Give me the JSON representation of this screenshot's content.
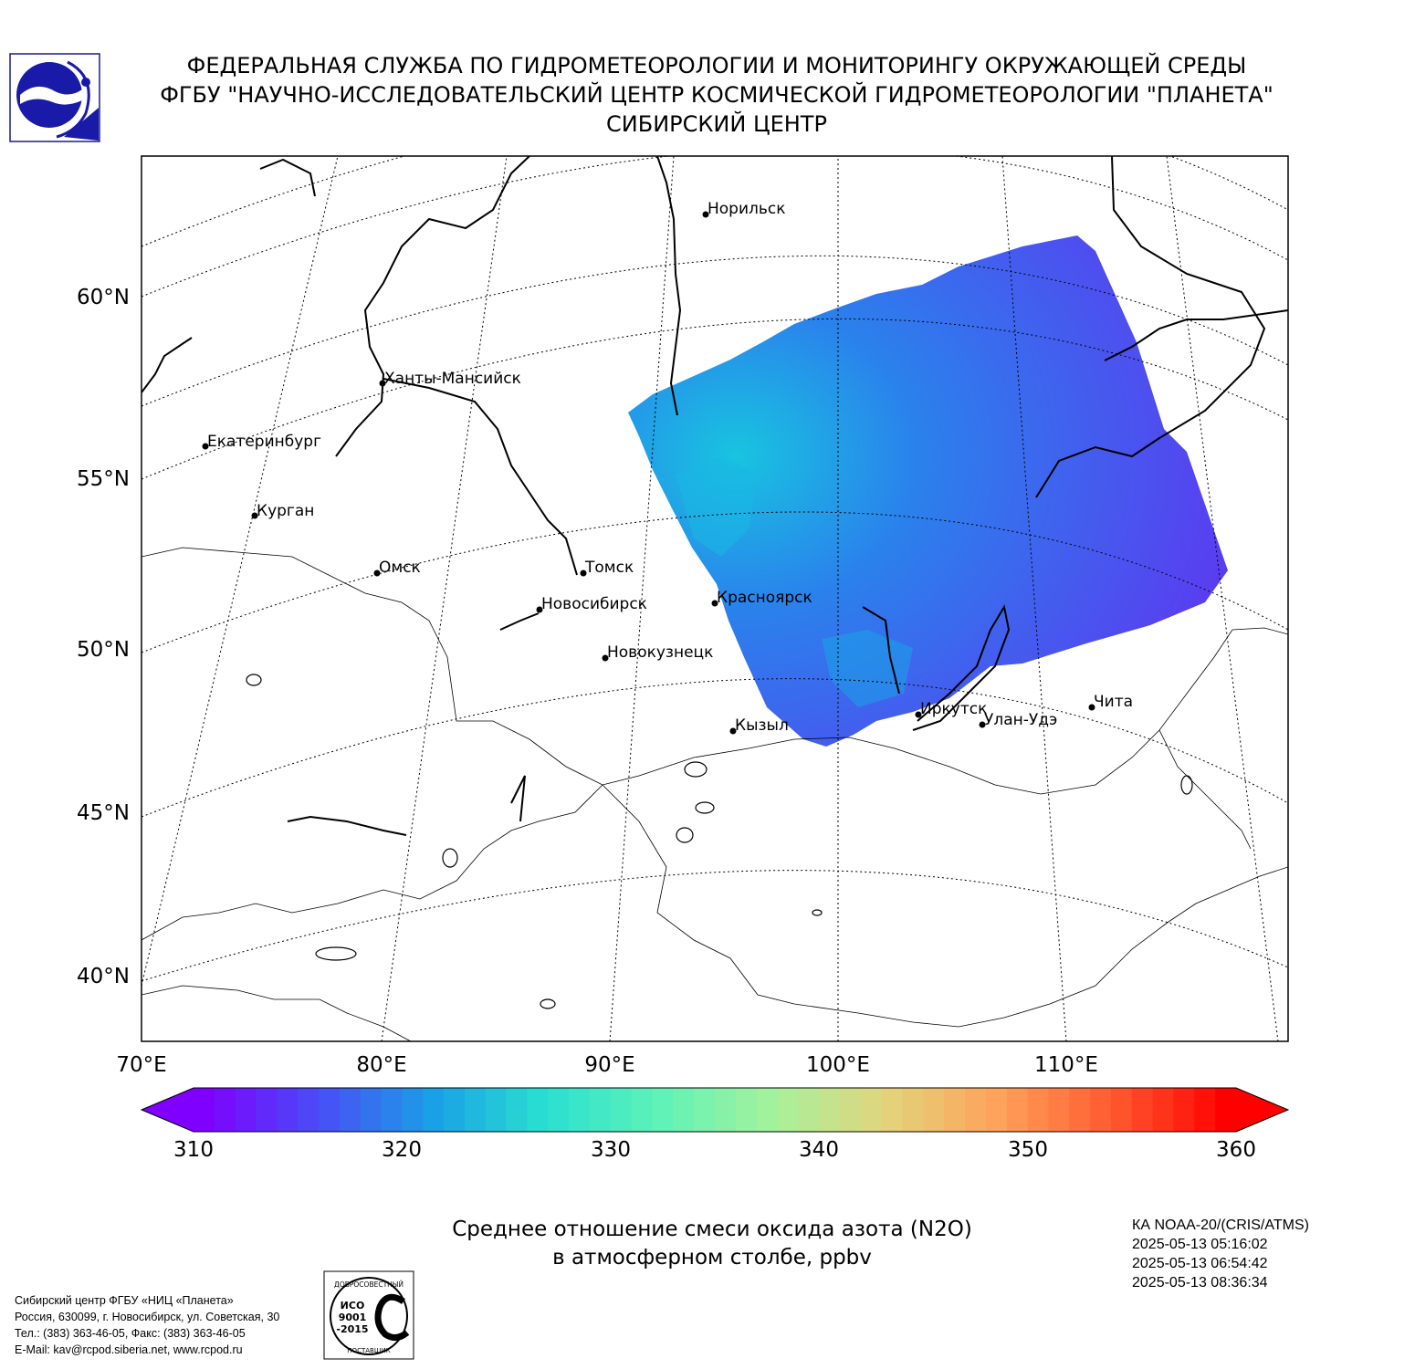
{
  "header": {
    "line1": "ФЕДЕРАЛЬНАЯ СЛУЖБА ПО ГИДРОМЕТЕОРОЛОГИИ И МОНИТОРИНГУ ОКРУЖАЮЩЕЙ СРЕДЫ",
    "line2": "ФГБУ \"НАУЧНО-ИССЛЕДОВАТЕЛЬСКИЙ ЦЕНТР КОСМИЧЕСКОЙ ГИДРОМЕТЕОРОЛОГИИ \"ПЛАНЕТА\"",
    "line3": "СИБИРСКИЙ ЦЕНТР"
  },
  "map": {
    "lat_labels": [
      "60°N",
      "55°N",
      "50°N",
      "45°N",
      "40°N"
    ],
    "lon_labels": [
      "70°E",
      "80°E",
      "90°E",
      "100°E",
      "110°E"
    ],
    "cities": [
      {
        "name": "Норильск"
      },
      {
        "name": "Ханты-Мансийск"
      },
      {
        "name": "Екатеринбург"
      },
      {
        "name": "Курган"
      },
      {
        "name": "Омск"
      },
      {
        "name": "Томск"
      },
      {
        "name": "Новосибирск"
      },
      {
        "name": "Красноярск"
      },
      {
        "name": "Новокузнецк"
      },
      {
        "name": "Кызыл"
      },
      {
        "name": "Иркутск"
      },
      {
        "name": "Улан-Удэ"
      },
      {
        "name": "Чита"
      }
    ],
    "field_colors": {
      "low": "#5a3cf0",
      "mid": "#2a82ec",
      "high": "#18c4e0"
    }
  },
  "colorbar": {
    "min": 310,
    "max": 360,
    "tick_labels": [
      "310",
      "320",
      "330",
      "340",
      "350",
      "360"
    ],
    "colors": [
      "#7f00ff",
      "#4a4cf6",
      "#1a9fe6",
      "#2ae0d0",
      "#5ef2b8",
      "#a4f29c",
      "#e2d47c",
      "#ffa25a",
      "#ff5a30",
      "#ff0000"
    ]
  },
  "caption": {
    "line1": "Среднее отношение смеси оксида азота (N2O)",
    "line2": "в атмосферном столбе, ppbv"
  },
  "satellite_info": {
    "instrument": "КА NOAA-20/(CRIS/ATMS)",
    "times": [
      "2025-05-13 05:16:02",
      "2025-05-13 06:54:42",
      "2025-05-13 08:36:34"
    ]
  },
  "contacts": {
    "line1": "Сибирский центр ФГБУ «НИЦ «Планета»",
    "line2": "Россия, 630099, г. Новосибирск, ул. Советская, 30",
    "line3": "Тел.: (383) 363-46-05, Факс: (383) 363-46-05",
    "line4": "E-Mail: kav@rcpod.siberia.net, www.rcpod.ru"
  },
  "iso_badge": {
    "top_text": "ДОБРОСОВЕСТНЫЙ",
    "center_text": "ИСО 9001 -2015",
    "bottom_text": "ПОСТАВЩИК"
  }
}
